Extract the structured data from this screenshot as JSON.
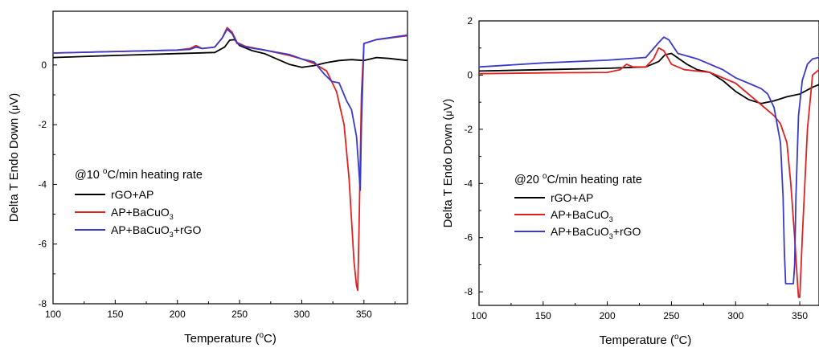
{
  "chart_data": [
    {
      "type": "line",
      "heating_rate_value": "10",
      "xlabel": {
        "main": "Temperature (",
        "sup": "o",
        "tail": "C)"
      },
      "ylabel": {
        "main": "Delta T Endo Down (",
        "mu": "μ",
        "tail": "V)"
      },
      "xlim": [
        100,
        385
      ],
      "ylim": [
        -8,
        1.8
      ],
      "xticks": [
        100,
        150,
        200,
        250,
        300,
        350
      ],
      "yticks": [
        0,
        -2,
        -4,
        -6,
        -8
      ],
      "annotation": {
        "prefix": "@",
        "value": "10",
        "deg": "o",
        "suffix": "C/min heating rate"
      },
      "legend": [
        {
          "text": "rGO+AP",
          "sub": "",
          "tail": ""
        },
        {
          "text": "AP+BaCuO",
          "sub": "3",
          "tail": ""
        },
        {
          "text": "AP+BaCuO",
          "sub": "3",
          "tail": "+rGO"
        }
      ],
      "series": [
        {
          "color": "#000000",
          "x": [
            100,
            150,
            200,
            230,
            238,
            242,
            246,
            250,
            260,
            270,
            280,
            290,
            300,
            310,
            320,
            330,
            340,
            350,
            360,
            370,
            385
          ],
          "y": [
            0.25,
            0.32,
            0.38,
            0.42,
            0.6,
            0.83,
            0.85,
            0.65,
            0.48,
            0.38,
            0.2,
            0.02,
            -0.08,
            -0.02,
            0.08,
            0.15,
            0.18,
            0.15,
            0.25,
            0.22,
            0.15
          ]
        },
        {
          "color": "#dd2222",
          "x": [
            100,
            150,
            200,
            210,
            215,
            220,
            230,
            236,
            240,
            244,
            248,
            255,
            270,
            290,
            300,
            310,
            320,
            328,
            334,
            338,
            340,
            342,
            344,
            345,
            346,
            348,
            350,
            360,
            385
          ],
          "y": [
            0.4,
            0.45,
            0.5,
            0.55,
            0.65,
            0.55,
            0.6,
            0.9,
            1.25,
            1.1,
            0.75,
            0.62,
            0.5,
            0.32,
            0.2,
            0.05,
            -0.2,
            -0.9,
            -2.0,
            -3.8,
            -5.2,
            -6.6,
            -7.4,
            -7.55,
            -5.5,
            -1.0,
            0.72,
            0.85,
            0.98
          ]
        },
        {
          "color": "#3a3ac8",
          "x": [
            100,
            150,
            200,
            210,
            215,
            220,
            230,
            236,
            240,
            244,
            248,
            255,
            270,
            290,
            300,
            310,
            318,
            324,
            330,
            336,
            340,
            344,
            346,
            347,
            348,
            350,
            360,
            385
          ],
          "y": [
            0.4,
            0.45,
            0.5,
            0.52,
            0.6,
            0.55,
            0.6,
            0.9,
            1.2,
            1.05,
            0.72,
            0.6,
            0.5,
            0.35,
            0.2,
            0.1,
            -0.3,
            -0.55,
            -0.6,
            -1.2,
            -1.5,
            -2.4,
            -3.6,
            -4.2,
            -2.0,
            0.72,
            0.85,
            1.0
          ]
        }
      ]
    },
    {
      "type": "line",
      "heating_rate_value": "20",
      "xlabel": {
        "main": "Temperature (",
        "sup": "o",
        "tail": "C)"
      },
      "ylabel": {
        "main": "Delta T Endo Down (",
        "mu": "μ",
        "tail": "V)"
      },
      "xlim": [
        100,
        365
      ],
      "ylim": [
        -8.5,
        2
      ],
      "xticks": [
        100,
        150,
        200,
        250,
        300,
        350
      ],
      "yticks": [
        2,
        0,
        -2,
        -4,
        -6,
        -8
      ],
      "annotation": {
        "prefix": "@",
        "value": "20",
        "deg": "o",
        "suffix": "C/min heating rate"
      },
      "legend": [
        {
          "text": "rGO+AP",
          "sub": "",
          "tail": ""
        },
        {
          "text": "AP+BaCuO",
          "sub": "3",
          "tail": ""
        },
        {
          "text": "AP+BaCuO",
          "sub": "3",
          "tail": "+rGO"
        }
      ],
      "series": [
        {
          "color": "#000000",
          "x": [
            100,
            150,
            200,
            230,
            240,
            245,
            250,
            256,
            262,
            270,
            280,
            290,
            300,
            310,
            320,
            330,
            340,
            350,
            360,
            365
          ],
          "y": [
            0.15,
            0.2,
            0.25,
            0.3,
            0.5,
            0.75,
            0.8,
            0.6,
            0.4,
            0.2,
            0.1,
            -0.2,
            -0.6,
            -0.9,
            -1.05,
            -0.95,
            -0.8,
            -0.7,
            -0.45,
            -0.35
          ]
        },
        {
          "color": "#dd2222",
          "x": [
            100,
            150,
            200,
            210,
            215,
            220,
            230,
            236,
            240,
            244,
            250,
            260,
            280,
            300,
            310,
            320,
            330,
            335,
            340,
            343,
            346,
            348,
            349,
            350,
            352,
            356,
            360,
            365
          ],
          "y": [
            0.05,
            0.08,
            0.1,
            0.2,
            0.4,
            0.3,
            0.3,
            0.6,
            1.0,
            0.9,
            0.4,
            0.2,
            0.1,
            -0.3,
            -0.7,
            -1.1,
            -1.5,
            -1.8,
            -2.5,
            -4.0,
            -6.0,
            -7.5,
            -8.2,
            -8.2,
            -6.0,
            -2.0,
            0.0,
            0.2
          ]
        },
        {
          "color": "#3a3ac8",
          "x": [
            100,
            150,
            200,
            230,
            240,
            244,
            248,
            255,
            270,
            290,
            300,
            310,
            320,
            325,
            330,
            335,
            337,
            338,
            339,
            340,
            341,
            343,
            345,
            346,
            347,
            349,
            352,
            356,
            360,
            365
          ],
          "y": [
            0.3,
            0.45,
            0.55,
            0.65,
            1.2,
            1.4,
            1.3,
            0.8,
            0.6,
            0.2,
            -0.1,
            -0.3,
            -0.5,
            -0.7,
            -1.2,
            -2.5,
            -4.5,
            -6.5,
            -7.7,
            -7.7,
            -7.7,
            -7.7,
            -7.7,
            -7.0,
            -4.5,
            -1.5,
            -0.2,
            0.4,
            0.6,
            0.65
          ]
        }
      ]
    }
  ]
}
